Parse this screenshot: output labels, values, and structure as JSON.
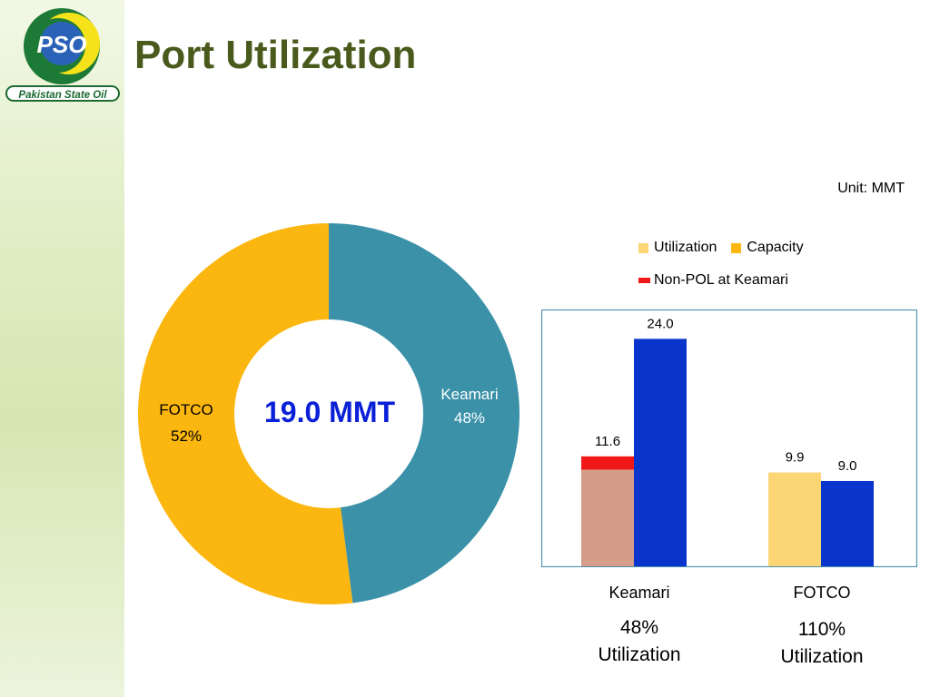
{
  "header": {
    "title": "Port Utilization",
    "logo_text": "PSO",
    "logo_caption": "Pakistan State Oil"
  },
  "unit_label": "Unit: MMT",
  "donut": {
    "center_label": "19.0 MMT",
    "segments": [
      {
        "name": "Keamari",
        "percent_label": "48%",
        "share": 0.48,
        "color": "#3a91a8"
      },
      {
        "name": "FOTCO",
        "percent_label": "52%",
        "share": 0.52,
        "color": "#fbb70f"
      }
    ]
  },
  "legend": {
    "utilization": "Utilization",
    "capacity": "Capacity",
    "non_pol": "Non-POL  at Keamari"
  },
  "colors": {
    "capacity": "#0a35cc",
    "utilization": "#fcd574",
    "keamari_utilization": "#d49c89",
    "non_pol": "#f01818",
    "legend_capacity": "#fbb70f",
    "frame": "#4a8faa"
  },
  "chart_data": {
    "type": "bar",
    "categories": [
      "Keamari",
      "FOTCO"
    ],
    "series": [
      {
        "name": "Utilization",
        "values": [
          11.6,
          9.9
        ],
        "value_labels": [
          "11.6",
          "9.9"
        ]
      },
      {
        "name": "Capacity",
        "values": [
          24.0,
          9.0
        ],
        "value_labels": [
          "24.0",
          "9.0"
        ]
      }
    ],
    "non_pol_keamari": 1.4,
    "ylim": [
      0,
      27
    ],
    "category_utilization": [
      {
        "percent": "48%",
        "text": "Utilization"
      },
      {
        "percent": "110%",
        "text": "Utilization"
      }
    ]
  }
}
